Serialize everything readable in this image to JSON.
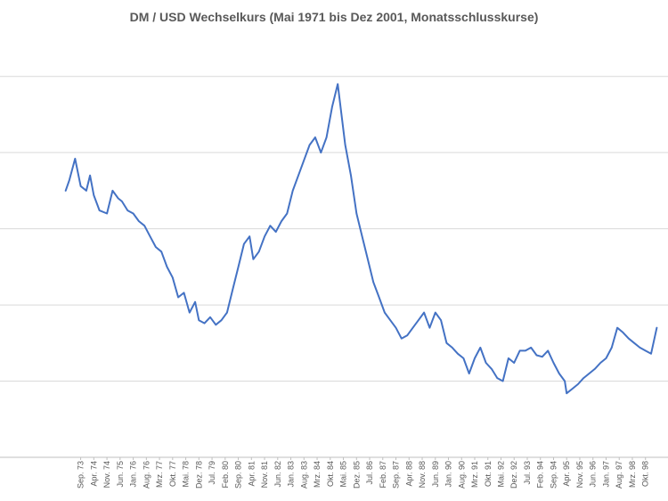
{
  "chart_data": {
    "type": "line",
    "title": "DM / USD Wechselkurs (Mai 1971 bis Dez 2001, Monatsschlusskurse)",
    "xlabel": "",
    "ylabel": "",
    "ylim": [
      1.0,
      3.75
    ],
    "grid": true,
    "legend": "none",
    "colors": {
      "line": "#4472c4",
      "grid": "#d9d9d9",
      "text": "#595959"
    },
    "x_tick_labels": [
      "Sep. 73",
      "Apr. 74",
      "Nov. 74",
      "Jun. 75",
      "Jan. 76",
      "Aug. 76",
      "Mrz. 77",
      "Okt. 77",
      "Mai. 78",
      "Dez. 78",
      "Jul. 79",
      "Feb. 80",
      "Sep. 80",
      "Apr. 81",
      "Nov. 81",
      "Jun. 82",
      "Jan. 83",
      "Aug. 83",
      "Mrz. 84",
      "Okt. 84",
      "Mai. 85",
      "Dez. 85",
      "Jul. 86",
      "Feb. 87",
      "Sep. 87",
      "Apr. 88",
      "Nov. 88",
      "Jun. 89",
      "Jan. 90",
      "Aug. 90",
      "Mrz. 91",
      "Okt. 91",
      "Mai. 92",
      "Dez. 92",
      "Jul. 93",
      "Feb. 94",
      "Sep. 94",
      "Apr. 95",
      "Nov. 95",
      "Jun. 96",
      "Jan. 97",
      "Aug. 97",
      "Mrz. 98",
      "Okt. 98"
    ],
    "series": [
      {
        "x": [
          "1973-01",
          "1973-03",
          "1973-06",
          "1973-09",
          "1973-12",
          "1974-02",
          "1974-04",
          "1974-07",
          "1974-11",
          "1975-02",
          "1975-05",
          "1975-07",
          "1975-10",
          "1976-01",
          "1976-04",
          "1976-07",
          "1976-10",
          "1977-01",
          "1977-04",
          "1977-07",
          "1977-10",
          "1978-01",
          "1978-04",
          "1978-07",
          "1978-10",
          "1978-12",
          "1979-03",
          "1979-06",
          "1979-09",
          "1979-12",
          "1980-03",
          "1980-06",
          "1980-09",
          "1980-12",
          "1981-03",
          "1981-05",
          "1981-08",
          "1981-11",
          "1982-02",
          "1982-05",
          "1982-08",
          "1982-11",
          "1983-02",
          "1983-05",
          "1983-08",
          "1983-11",
          "1984-02",
          "1984-05",
          "1984-08",
          "1984-11",
          "1985-02",
          "1985-03",
          "1985-06",
          "1985-09",
          "1985-12",
          "1986-03",
          "1986-06",
          "1986-09",
          "1986-12",
          "1987-03",
          "1987-06",
          "1987-09",
          "1987-12",
          "1988-03",
          "1988-06",
          "1988-09",
          "1988-12",
          "1989-03",
          "1989-06",
          "1989-09",
          "1989-12",
          "1990-03",
          "1990-06",
          "1990-09",
          "1990-12",
          "1991-03",
          "1991-06",
          "1991-09",
          "1991-12",
          "1992-03",
          "1992-06",
          "1992-09",
          "1992-12",
          "1993-03",
          "1993-06",
          "1993-09",
          "1993-12",
          "1994-03",
          "1994-06",
          "1994-09",
          "1994-12",
          "1995-03",
          "1995-04",
          "1995-07",
          "1995-10",
          "1996-01",
          "1996-04",
          "1996-07",
          "1996-10",
          "1997-01",
          "1997-04",
          "1997-07",
          "1997-10",
          "1998-01",
          "1998-04",
          "1998-07",
          "1998-10",
          "1999-01",
          "1999-04"
        ],
        "values": [
          2.75,
          2.82,
          2.96,
          2.78,
          2.75,
          2.85,
          2.72,
          2.62,
          2.6,
          2.75,
          2.7,
          2.68,
          2.62,
          2.6,
          2.55,
          2.52,
          2.45,
          2.38,
          2.35,
          2.25,
          2.18,
          2.05,
          2.08,
          1.95,
          2.02,
          1.9,
          1.88,
          1.92,
          1.87,
          1.9,
          1.95,
          2.1,
          2.25,
          2.4,
          2.45,
          2.3,
          2.35,
          2.45,
          2.52,
          2.48,
          2.55,
          2.6,
          2.75,
          2.85,
          2.95,
          3.05,
          3.1,
          3.0,
          3.1,
          3.3,
          3.45,
          3.35,
          3.05,
          2.85,
          2.6,
          2.45,
          2.3,
          2.15,
          2.05,
          1.95,
          1.9,
          1.85,
          1.78,
          1.8,
          1.85,
          1.9,
          1.95,
          1.85,
          1.95,
          1.9,
          1.75,
          1.72,
          1.68,
          1.65,
          1.55,
          1.65,
          1.72,
          1.62,
          1.58,
          1.52,
          1.5,
          1.65,
          1.62,
          1.7,
          1.7,
          1.72,
          1.67,
          1.66,
          1.7,
          1.62,
          1.55,
          1.5,
          1.42,
          1.45,
          1.48,
          1.52,
          1.55,
          1.58,
          1.62,
          1.65,
          1.72,
          1.85,
          1.82,
          1.78,
          1.75,
          1.72,
          1.7,
          1.68,
          1.85
        ]
      }
    ]
  }
}
